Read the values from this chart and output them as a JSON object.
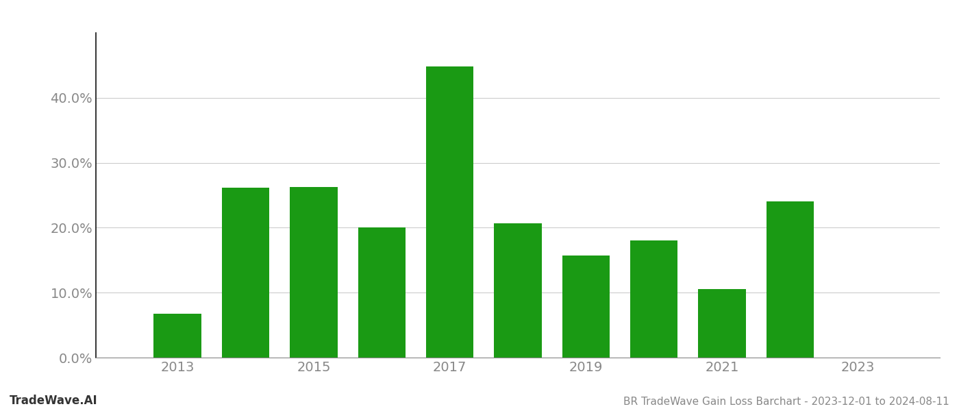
{
  "years": [
    2013,
    2014,
    2015,
    2016,
    2017,
    2018,
    2019,
    2020,
    2021,
    2022
  ],
  "values": [
    0.067,
    0.262,
    0.263,
    0.2,
    0.448,
    0.207,
    0.157,
    0.18,
    0.105,
    0.24
  ],
  "bar_color": "#1a9a14",
  "background_color": "#ffffff",
  "grid_color": "#cccccc",
  "axis_color": "#888888",
  "tick_label_color": "#888888",
  "yticks": [
    0.0,
    0.1,
    0.2,
    0.3,
    0.4
  ],
  "xtick_positions": [
    2013,
    2015,
    2017,
    2019,
    2021,
    2023
  ],
  "xtick_labels": [
    "2013",
    "2015",
    "2017",
    "2019",
    "2021",
    "2023"
  ],
  "footer_left": "TradeWave.AI",
  "footer_right": "BR TradeWave Gain Loss Barchart - 2023-12-01 to 2024-08-11",
  "bar_width": 0.7,
  "ylim": [
    0.0,
    0.5
  ],
  "xlim": [
    2011.8,
    2024.2
  ]
}
